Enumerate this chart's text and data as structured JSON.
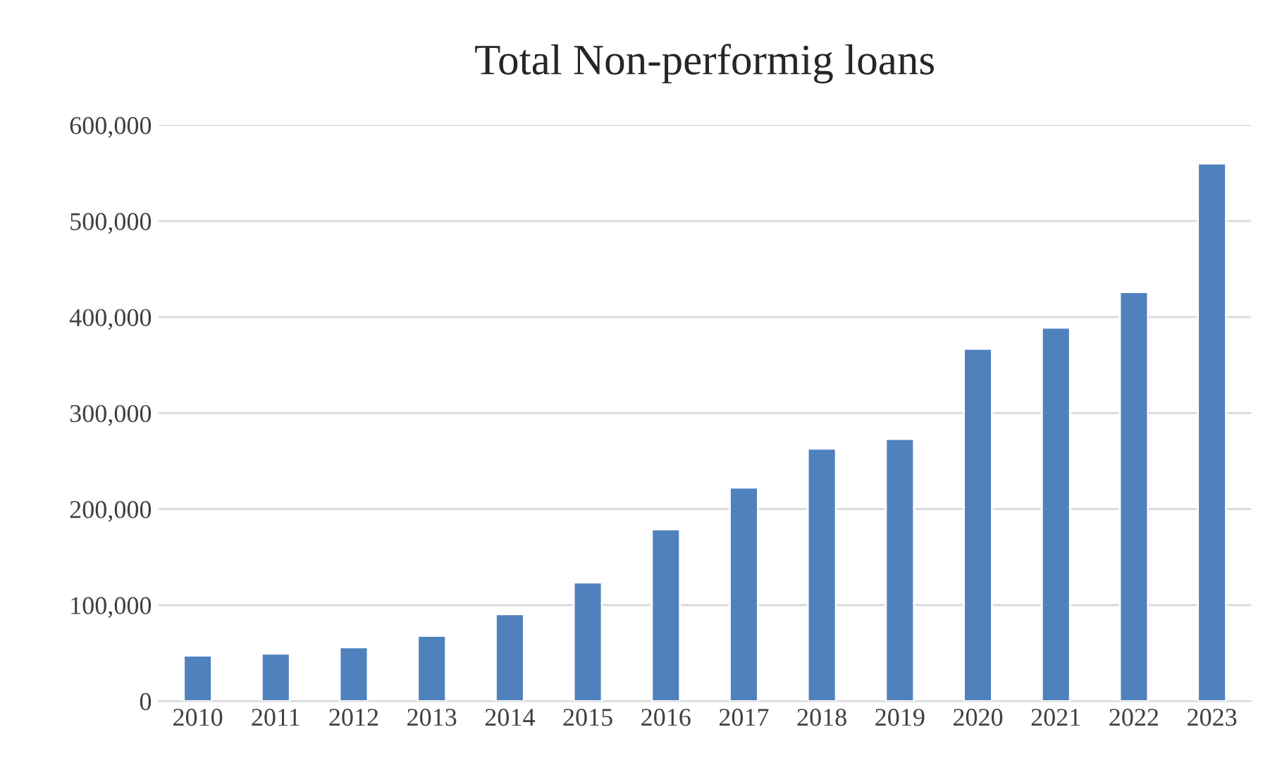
{
  "chart_data": {
    "type": "bar",
    "title": "Total Non-performig loans",
    "categories": [
      "2010",
      "2011",
      "2012",
      "2013",
      "2014",
      "2015",
      "2016",
      "2017",
      "2018",
      "2019",
      "2020",
      "2021",
      "2022",
      "2023"
    ],
    "values": [
      47500,
      49500,
      56000,
      68000,
      90500,
      123500,
      179000,
      222500,
      263000,
      273000,
      367000,
      389000,
      426000,
      560000
    ],
    "color": "#4f81bd",
    "ylim": [
      0,
      600000
    ],
    "yticks": [
      {
        "value": 0,
        "label": "0"
      },
      {
        "value": 100000,
        "label": "100,000"
      },
      {
        "value": 200000,
        "label": "200,000"
      },
      {
        "value": 300000,
        "label": "300,000"
      },
      {
        "value": 400000,
        "label": "400,000"
      },
      {
        "value": 500000,
        "label": "500,000"
      },
      {
        "value": 600000,
        "label": "600,000"
      }
    ],
    "grid": "y"
  }
}
